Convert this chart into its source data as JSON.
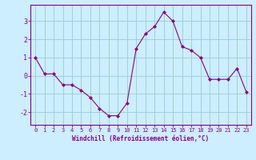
{
  "x": [
    0,
    1,
    2,
    3,
    4,
    5,
    6,
    7,
    8,
    9,
    10,
    11,
    12,
    13,
    14,
    15,
    16,
    17,
    18,
    19,
    20,
    21,
    22,
    23
  ],
  "y": [
    1.0,
    0.1,
    0.1,
    -0.5,
    -0.5,
    -0.8,
    -1.2,
    -1.8,
    -2.2,
    -2.2,
    -1.5,
    1.5,
    2.3,
    2.7,
    3.5,
    3.0,
    1.6,
    1.4,
    1.0,
    -0.2,
    -0.2,
    -0.2,
    0.4,
    -0.9
  ],
  "line_color": "#880088",
  "marker": "D",
  "marker_size": 2.0,
  "bg_color": "#cceeff",
  "grid_color": "#99cccc",
  "xlabel": "Windchill (Refroidissement éolien,°C)",
  "xlim": [
    -0.5,
    23.5
  ],
  "ylim": [
    -2.7,
    3.9
  ],
  "yticks": [
    -2,
    -1,
    0,
    1,
    2,
    3
  ],
  "xticks": [
    0,
    1,
    2,
    3,
    4,
    5,
    6,
    7,
    8,
    9,
    10,
    11,
    12,
    13,
    14,
    15,
    16,
    17,
    18,
    19,
    20,
    21,
    22,
    23
  ],
  "xtick_labels": [
    "0",
    "1",
    "2",
    "3",
    "4",
    "5",
    "6",
    "7",
    "8",
    "9",
    "10",
    "11",
    "12",
    "13",
    "14",
    "15",
    "16",
    "17",
    "18",
    "19",
    "20",
    "21",
    "22",
    "23"
  ],
  "tick_color": "#880088",
  "axis_color": "#880088",
  "label_fontsize": 5.0,
  "xlabel_fontsize": 5.5,
  "ytick_fontsize": 6.0
}
